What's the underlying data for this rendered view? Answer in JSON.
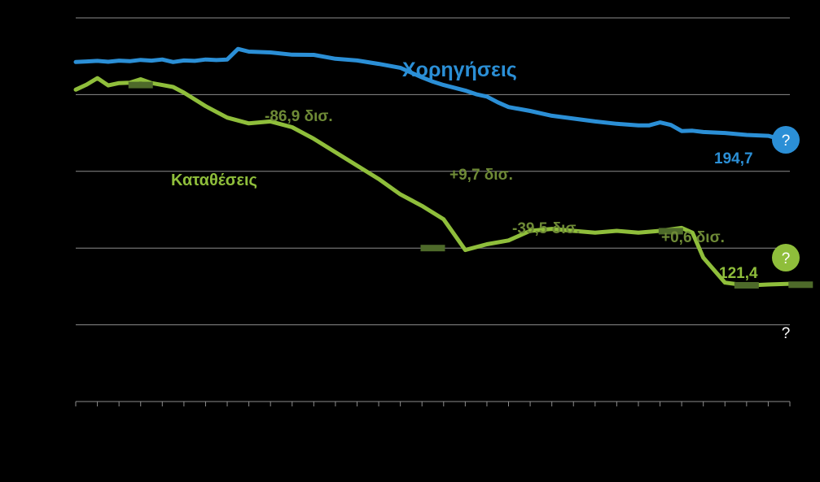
{
  "chart_data": {
    "type": "line",
    "title": "",
    "xlabel": "",
    "ylabel": "",
    "ylim": [
      60,
      260
    ],
    "xlim": [
      0,
      33
    ],
    "grid": true,
    "series": [
      {
        "name": "Χορηγήσεις",
        "color": "#2b8fd6",
        "points": [
          [
            0,
            237
          ],
          [
            0.5,
            237.3
          ],
          [
            1,
            237.6
          ],
          [
            1.5,
            237.1
          ],
          [
            2,
            237.7
          ],
          [
            2.5,
            237.4
          ],
          [
            3,
            238.1
          ],
          [
            3.5,
            237.7
          ],
          [
            4,
            238.3
          ],
          [
            4.5,
            237
          ],
          [
            5,
            237.8
          ],
          [
            5.5,
            237.6
          ],
          [
            6,
            238.3
          ],
          [
            6.5,
            238
          ],
          [
            7,
            238.3
          ],
          [
            7.5,
            243.8
          ],
          [
            8,
            242.4
          ],
          [
            9,
            242
          ],
          [
            10,
            240.8
          ],
          [
            11,
            240.7
          ],
          [
            12,
            238.7
          ],
          [
            13,
            237.8
          ],
          [
            14,
            236
          ],
          [
            15,
            234
          ],
          [
            16,
            229
          ],
          [
            16.5,
            226.8
          ],
          [
            17,
            225
          ],
          [
            18,
            222.1
          ],
          [
            18.5,
            220.2
          ],
          [
            19,
            219
          ],
          [
            19.5,
            216
          ],
          [
            20,
            213.5
          ],
          [
            21,
            211.5
          ],
          [
            22,
            209
          ],
          [
            23,
            207.5
          ],
          [
            24,
            206
          ],
          [
            25,
            204.8
          ],
          [
            26,
            204
          ],
          [
            26.5,
            204
          ],
          [
            27,
            205.5
          ],
          [
            27.5,
            204.2
          ],
          [
            28,
            201
          ],
          [
            28.5,
            201.2
          ],
          [
            29,
            200.5
          ],
          [
            30,
            200
          ],
          [
            31,
            199
          ],
          [
            32,
            198.5
          ],
          [
            32.5,
            197
          ],
          [
            33,
            194.7
          ]
        ]
      },
      {
        "name": "Καταθέσεις",
        "color": "#8fbe3b",
        "points": [
          [
            0,
            222.6
          ],
          [
            0.5,
            225.2
          ],
          [
            1,
            228.6
          ],
          [
            1.5,
            224.8
          ],
          [
            2,
            226
          ],
          [
            2.5,
            226.2
          ],
          [
            3,
            228
          ],
          [
            3.5,
            226
          ],
          [
            4,
            225
          ],
          [
            4.5,
            224
          ],
          [
            5,
            221
          ],
          [
            6,
            214
          ],
          [
            7,
            208
          ],
          [
            8,
            205
          ],
          [
            9,
            206
          ],
          [
            10,
            203
          ],
          [
            11,
            197
          ],
          [
            12,
            190
          ],
          [
            13,
            183
          ],
          [
            14,
            176
          ],
          [
            15,
            168
          ],
          [
            16,
            162
          ],
          [
            17,
            155
          ],
          [
            18,
            139
          ],
          [
            19,
            142
          ],
          [
            20,
            144
          ],
          [
            21,
            149
          ],
          [
            22,
            150
          ],
          [
            23,
            149
          ],
          [
            24,
            148
          ],
          [
            25,
            149
          ],
          [
            26,
            148
          ],
          [
            27,
            149
          ],
          [
            28,
            150.5
          ],
          [
            28.5,
            148
          ],
          [
            29,
            135
          ],
          [
            30,
            122
          ],
          [
            31,
            120.5
          ],
          [
            32,
            121
          ],
          [
            33,
            121.4
          ]
        ]
      }
    ],
    "end_values": [
      {
        "series": "Χορηγήσεις",
        "label": "194,7",
        "y": 194.7
      },
      {
        "series": "Καταθέσεις",
        "label": "121,4",
        "y": 121.4
      }
    ],
    "change_annotations": [
      "-86,9 δισ.",
      "+9,7 δισ.",
      "-39,5 δισ.",
      "+0,6 δισ."
    ],
    "period_markers": [
      [
        3,
        225
      ],
      [
        16.5,
        140
      ],
      [
        27.5,
        148.8
      ],
      [
        31,
        120.6
      ],
      [
        33.5,
        120.9
      ]
    ],
    "question_marks": [
      {
        "label": "?",
        "y": 192,
        "color": "#2b8fd6"
      },
      {
        "label": "?",
        "y": 120,
        "color": "#8fbe3b"
      },
      {
        "label": "?",
        "y": 70,
        "color": "none"
      }
    ],
    "marker_color": "#4e6a2a",
    "annotation_color": "#6e8a36"
  }
}
